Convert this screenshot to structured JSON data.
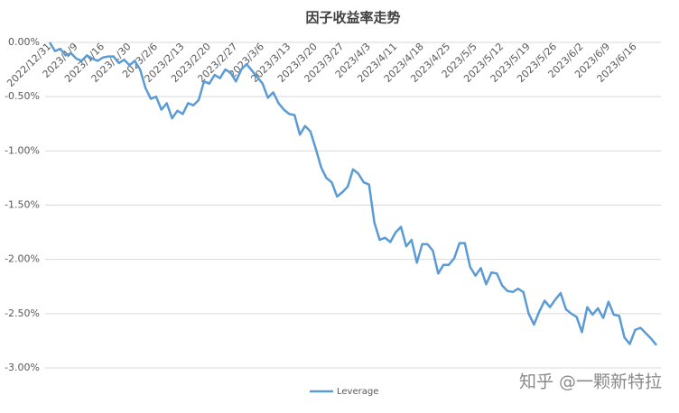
{
  "chart_data": {
    "type": "line",
    "title": "因子收益率走势",
    "categories": [
      "2022/12/31",
      null,
      null,
      null,
      null,
      "2023/1/9",
      null,
      null,
      null,
      null,
      "2023/1/16",
      null,
      null,
      null,
      null,
      "2023/1/30",
      null,
      null,
      null,
      null,
      "2023/2/6",
      null,
      null,
      null,
      null,
      "2023/2/13",
      null,
      null,
      null,
      null,
      "2023/2/20",
      null,
      null,
      null,
      null,
      "2023/2/27",
      null,
      null,
      null,
      null,
      "2023/3/6",
      null,
      null,
      null,
      null,
      "2023/3/13",
      null,
      null,
      null,
      null,
      "2023/3/20",
      null,
      null,
      null,
      null,
      "2023/3/27",
      null,
      null,
      null,
      null,
      "2023/4/3",
      null,
      null,
      null,
      null,
      "2023/4/11",
      null,
      null,
      null,
      null,
      "2023/4/18",
      null,
      null,
      null,
      null,
      "2023/4/25",
      null,
      null,
      null,
      null,
      "2023/5/5",
      null,
      null,
      null,
      null,
      "2023/5/12",
      null,
      null,
      null,
      null,
      "2023/5/19",
      null,
      null,
      null,
      null,
      "2023/5/26",
      null,
      null,
      null,
      null,
      "2023/6/2",
      null,
      null,
      null,
      null,
      "2023/6/9",
      null,
      null,
      null,
      null,
      "2023/6/16",
      null,
      null,
      null,
      null
    ],
    "series": [
      {
        "name": "Leverage",
        "color": "#5b9bd5",
        "values": [
          0.0,
          -0.08,
          -0.06,
          -0.12,
          -0.1,
          -0.15,
          -0.17,
          -0.12,
          -0.15,
          -0.17,
          -0.14,
          -0.13,
          -0.13,
          -0.19,
          -0.16,
          -0.21,
          -0.17,
          -0.25,
          -0.42,
          -0.52,
          -0.5,
          -0.62,
          -0.56,
          -0.7,
          -0.63,
          -0.66,
          -0.56,
          -0.58,
          -0.53,
          -0.36,
          -0.38,
          -0.3,
          -0.33,
          -0.25,
          -0.28,
          -0.36,
          -0.25,
          -0.2,
          -0.26,
          -0.32,
          -0.38,
          -0.51,
          -0.46,
          -0.56,
          -0.62,
          -0.66,
          -0.67,
          -0.85,
          -0.77,
          -0.82,
          -0.98,
          -1.15,
          -1.25,
          -1.29,
          -1.42,
          -1.38,
          -1.33,
          -1.17,
          -1.21,
          -1.29,
          -1.31,
          -1.66,
          -1.82,
          -1.8,
          -1.84,
          -1.75,
          -1.7,
          -1.88,
          -1.82,
          -2.03,
          -1.86,
          -1.86,
          -1.92,
          -2.13,
          -2.05,
          -2.05,
          -1.99,
          -1.85,
          -1.85,
          -2.07,
          -2.15,
          -2.08,
          -2.23,
          -2.12,
          -2.13,
          -2.24,
          -2.29,
          -2.3,
          -2.27,
          -2.3,
          -2.5,
          -2.6,
          -2.48,
          -2.38,
          -2.44,
          -2.37,
          -2.31,
          -2.46,
          -2.5,
          -2.53,
          -2.67,
          -2.44,
          -2.51,
          -2.45,
          -2.54,
          -2.39,
          -2.51,
          -2.52,
          -2.72,
          -2.78,
          -2.65,
          -2.63,
          -2.68,
          -2.73,
          -2.79
        ]
      }
    ],
    "ylim": [
      -3,
      0
    ],
    "yticks": [
      {
        "value": 0,
        "label": "0.00%"
      },
      {
        "value": -0.5,
        "label": "-0.50%"
      },
      {
        "value": -1,
        "label": "-1.00%"
      },
      {
        "value": -1.5,
        "label": "-1.50%"
      },
      {
        "value": -2,
        "label": "-2.00%"
      },
      {
        "value": -2.5,
        "label": "-2.50%"
      },
      {
        "value": -3,
        "label": "-3.00%"
      }
    ],
    "grid": true,
    "legend": "bottom",
    "watermark": "知乎 @一颗新特拉"
  }
}
